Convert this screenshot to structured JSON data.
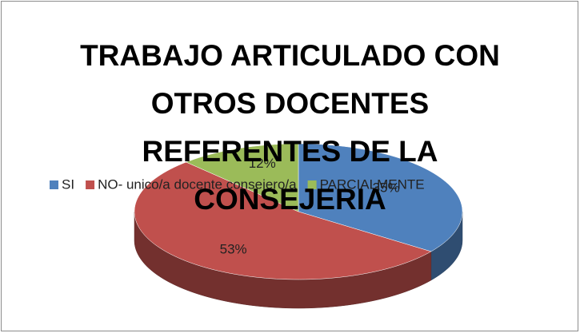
{
  "chart_data": {
    "type": "pie3d",
    "title": "TRABAJO ARTICULADO CON OTROS DOCENTES REFERENTES DE LA CONSEJERIA",
    "categories": [
      "SI",
      "NO- unico/a docente consejero/a",
      "PARCIALMENTE"
    ],
    "values": [
      35,
      53,
      12
    ],
    "value_labels": [
      "35%",
      "53%",
      "12%"
    ],
    "colors": [
      "#4f81bd",
      "#c0504d",
      "#9bbb59"
    ],
    "legend": "top"
  }
}
